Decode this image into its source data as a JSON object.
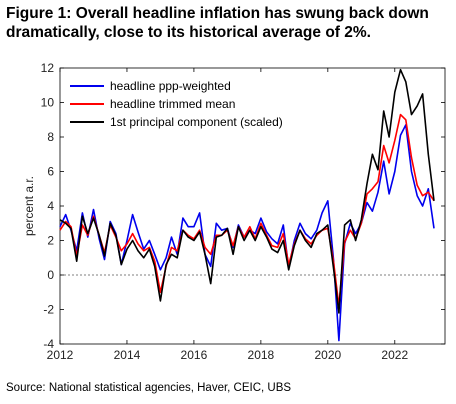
{
  "figure": {
    "title": "Figure 1: Overall headline inflation has swung back down dramatically, close to its historical average of 2%.",
    "source": "Source: National statistical agencies, Haver, CEIC, UBS"
  },
  "chart_data": {
    "type": "line",
    "title": "",
    "xlabel": "",
    "ylabel": "percent a.r.",
    "xlim": [
      2012,
      2023.5
    ],
    "ylim": [
      -4,
      12
    ],
    "xticks": [
      2012,
      2014,
      2016,
      2018,
      2020,
      2022
    ],
    "yticks": [
      -4,
      -2,
      0,
      2,
      4,
      6,
      8,
      10,
      12
    ],
    "grid": false,
    "legend": "top-left",
    "series": [
      {
        "name": "headline ppp-weighted",
        "color": "#0000ee",
        "x": [
          2012.0,
          2012.17,
          2012.33,
          2012.5,
          2012.67,
          2012.83,
          2013.0,
          2013.17,
          2013.33,
          2013.5,
          2013.67,
          2013.83,
          2014.0,
          2014.17,
          2014.33,
          2014.5,
          2014.67,
          2014.83,
          2015.0,
          2015.17,
          2015.33,
          2015.5,
          2015.67,
          2015.83,
          2016.0,
          2016.17,
          2016.33,
          2016.5,
          2016.67,
          2016.83,
          2017.0,
          2017.17,
          2017.33,
          2017.5,
          2017.67,
          2017.83,
          2018.0,
          2018.17,
          2018.33,
          2018.5,
          2018.67,
          2018.83,
          2019.0,
          2019.17,
          2019.33,
          2019.5,
          2019.67,
          2019.83,
          2020.0,
          2020.17,
          2020.33,
          2020.5,
          2020.67,
          2020.83,
          2021.0,
          2021.17,
          2021.33,
          2021.5,
          2021.67,
          2021.83,
          2022.0,
          2022.17,
          2022.33,
          2022.5,
          2022.67,
          2022.83,
          2023.0,
          2023.17
        ],
        "y": [
          2.8,
          3.5,
          2.6,
          1.4,
          3.6,
          2.2,
          3.8,
          2.1,
          0.9,
          3.1,
          2.4,
          0.6,
          2.0,
          3.5,
          2.5,
          1.5,
          2.0,
          1.2,
          0.3,
          1.0,
          2.2,
          1.2,
          3.3,
          2.8,
          2.8,
          3.6,
          1.2,
          0.5,
          3.0,
          2.6,
          2.7,
          1.6,
          2.9,
          2.2,
          2.6,
          2.4,
          3.3,
          2.5,
          2.1,
          1.8,
          2.9,
          0.4,
          2.0,
          3.0,
          2.4,
          2.1,
          2.6,
          3.6,
          4.3,
          0.9,
          -3.8,
          1.8,
          3.0,
          2.4,
          3.0,
          4.2,
          3.7,
          4.8,
          6.6,
          4.7,
          6.0,
          8.1,
          8.7,
          6.0,
          4.6,
          4.0,
          5.0,
          2.7
        ]
      },
      {
        "name": "headline trimmed mean",
        "color": "#ff0000",
        "x": [
          2012.0,
          2012.17,
          2012.33,
          2012.5,
          2012.67,
          2012.83,
          2013.0,
          2013.17,
          2013.33,
          2013.5,
          2013.67,
          2013.83,
          2014.0,
          2014.17,
          2014.33,
          2014.5,
          2014.67,
          2014.83,
          2015.0,
          2015.17,
          2015.33,
          2015.5,
          2015.67,
          2015.83,
          2016.0,
          2016.17,
          2016.33,
          2016.5,
          2016.67,
          2016.83,
          2017.0,
          2017.17,
          2017.33,
          2017.5,
          2017.67,
          2017.83,
          2018.0,
          2018.17,
          2018.33,
          2018.5,
          2018.67,
          2018.83,
          2019.0,
          2019.17,
          2019.33,
          2019.5,
          2019.67,
          2019.83,
          2020.0,
          2020.17,
          2020.33,
          2020.5,
          2020.67,
          2020.83,
          2021.0,
          2021.17,
          2021.33,
          2021.5,
          2021.67,
          2021.83,
          2022.0,
          2022.17,
          2022.33,
          2022.5,
          2022.67,
          2022.83,
          2023.0,
          2023.17
        ],
        "y": [
          2.6,
          3.1,
          2.8,
          1.1,
          2.9,
          2.3,
          3.4,
          2.3,
          1.3,
          2.9,
          2.2,
          1.4,
          1.8,
          2.4,
          1.8,
          1.4,
          1.6,
          0.8,
          -1.0,
          0.5,
          1.6,
          1.4,
          2.6,
          2.3,
          2.1,
          2.6,
          1.6,
          1.2,
          2.3,
          2.3,
          2.6,
          1.7,
          2.8,
          2.2,
          2.8,
          2.1,
          3.0,
          2.3,
          1.7,
          1.6,
          2.4,
          0.6,
          1.8,
          2.6,
          2.1,
          1.8,
          2.3,
          2.6,
          2.7,
          0.8,
          -1.8,
          1.9,
          2.6,
          2.1,
          3.0,
          4.7,
          5.0,
          5.4,
          7.5,
          6.5,
          7.8,
          9.3,
          9.0,
          6.8,
          5.2,
          4.6,
          4.8,
          4.3
        ]
      },
      {
        "name": "1st principal component (scaled)",
        "color": "#000000",
        "x": [
          2012.0,
          2012.17,
          2012.33,
          2012.5,
          2012.67,
          2012.83,
          2013.0,
          2013.17,
          2013.33,
          2013.5,
          2013.67,
          2013.83,
          2014.0,
          2014.17,
          2014.33,
          2014.5,
          2014.67,
          2014.83,
          2015.0,
          2015.17,
          2015.33,
          2015.5,
          2015.67,
          2015.83,
          2016.0,
          2016.17,
          2016.33,
          2016.5,
          2016.67,
          2016.83,
          2017.0,
          2017.17,
          2017.33,
          2017.5,
          2017.67,
          2017.83,
          2018.0,
          2018.17,
          2018.33,
          2018.5,
          2018.67,
          2018.83,
          2019.0,
          2019.17,
          2019.33,
          2019.5,
          2019.67,
          2019.83,
          2020.0,
          2020.17,
          2020.33,
          2020.5,
          2020.67,
          2020.83,
          2021.0,
          2021.17,
          2021.33,
          2021.5,
          2021.67,
          2021.83,
          2022.0,
          2022.17,
          2022.33,
          2022.5,
          2022.67,
          2022.83,
          2023.0,
          2023.17
        ],
        "y": [
          3.2,
          3.0,
          2.7,
          0.8,
          3.4,
          2.4,
          3.3,
          2.3,
          1.1,
          3.0,
          2.3,
          0.6,
          1.5,
          2.0,
          1.4,
          1.0,
          1.5,
          0.5,
          -1.5,
          0.6,
          1.2,
          1.0,
          2.6,
          2.2,
          2.0,
          2.5,
          1.2,
          -0.5,
          2.2,
          2.3,
          2.7,
          1.2,
          2.8,
          2.0,
          2.6,
          2.0,
          2.8,
          2.2,
          1.5,
          1.3,
          2.0,
          0.3,
          1.7,
          2.6,
          2.0,
          1.6,
          2.4,
          2.6,
          2.9,
          0.4,
          -2.2,
          2.9,
          3.2,
          2.0,
          3.2,
          5.3,
          7.0,
          6.1,
          9.5,
          8.0,
          10.6,
          11.9,
          11.2,
          9.3,
          9.8,
          10.5,
          7.0,
          4.3
        ]
      }
    ]
  }
}
